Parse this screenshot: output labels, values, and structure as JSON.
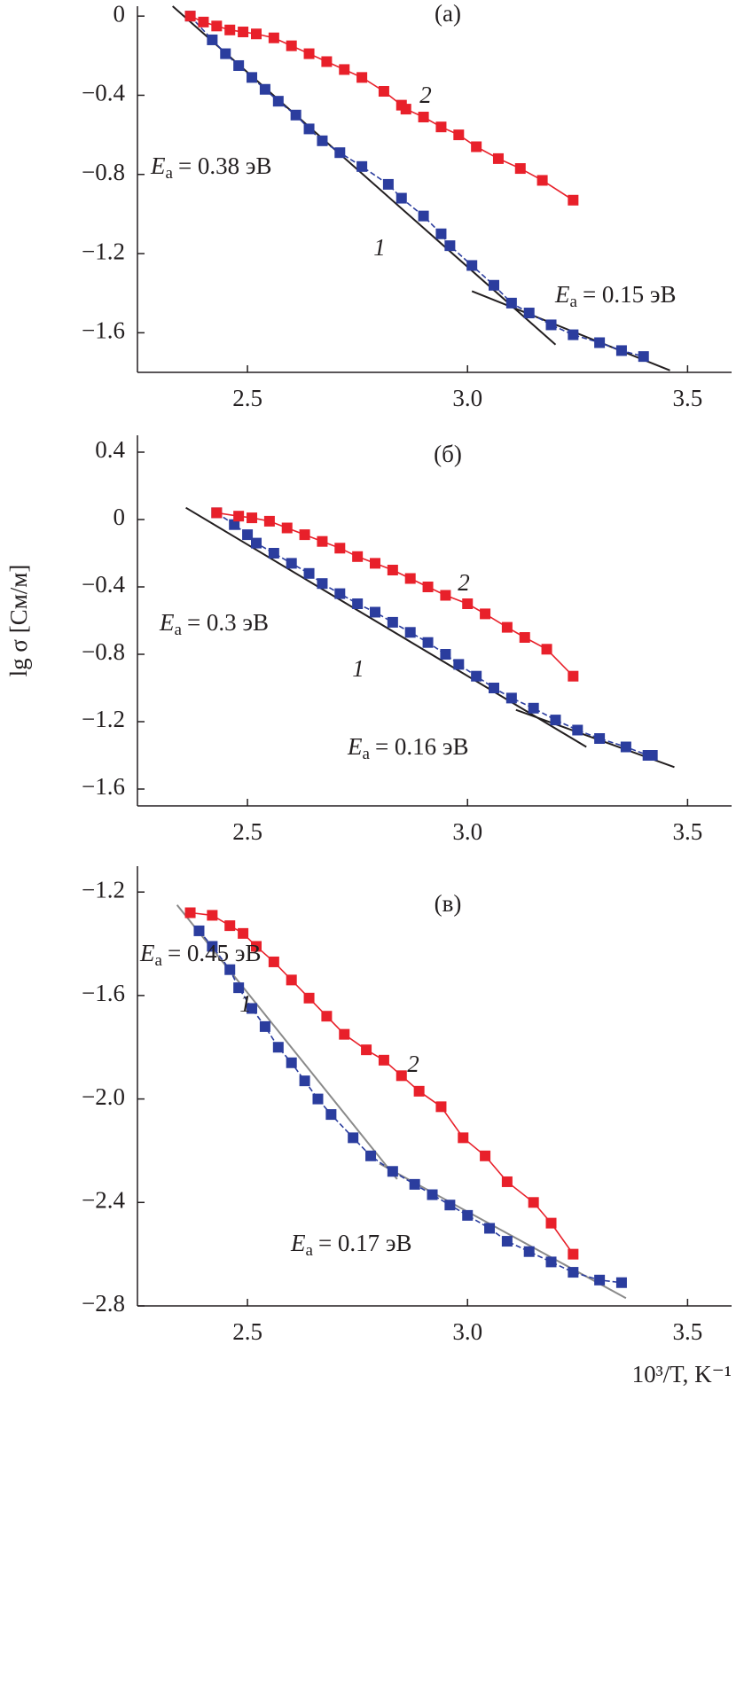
{
  "chart_data": [
    {
      "type": "scatter-line",
      "title": "(a)",
      "xlim": [
        2.25,
        3.6
      ],
      "xticks": [
        2.5,
        {
          "value": 3,
          "label": "3.0"
        },
        3.5
      ],
      "ylim": [
        -1.8,
        0.05
      ],
      "yticks": [
        0,
        {
          "value": -0.4,
          "label": "−0.4"
        },
        {
          "value": -0.8,
          "label": "−0.8"
        },
        {
          "value": -1.2,
          "label": "−1.2"
        },
        {
          "value": -1.6,
          "label": "−1.6"
        }
      ],
      "series": [
        {
          "name": "1",
          "color": "#2b3d9e",
          "x": [
            2.37,
            2.42,
            2.45,
            2.48,
            2.51,
            2.54,
            2.57,
            2.61,
            2.64,
            2.67,
            2.71,
            2.76,
            2.82,
            2.85,
            2.9,
            2.94,
            2.96,
            3.01,
            3.06,
            3.1,
            3.14,
            3.19,
            3.24,
            3.3,
            3.35,
            3.4
          ],
          "values": [
            0,
            -0.12,
            -0.19,
            -0.25,
            -0.31,
            -0.37,
            -0.43,
            -0.5,
            -0.57,
            -0.63,
            -0.69,
            -0.76,
            -0.85,
            -0.92,
            -1.01,
            -1.1,
            -1.16,
            -1.26,
            -1.36,
            -1.45,
            -1.5,
            -1.56,
            -1.61,
            -1.65,
            -1.69,
            -1.72
          ]
        },
        {
          "name": "2",
          "color": "#e8202a",
          "x": [
            2.37,
            2.4,
            2.43,
            2.46,
            2.49,
            2.52,
            2.56,
            2.6,
            2.64,
            2.68,
            2.72,
            2.76,
            2.81,
            2.85,
            2.86,
            2.9,
            2.94,
            2.98,
            3.02,
            3.07,
            3.12,
            3.17,
            3.24
          ],
          "values": [
            0,
            -0.03,
            -0.05,
            -0.07,
            -0.08,
            -0.09,
            -0.11,
            -0.15,
            -0.19,
            -0.23,
            -0.27,
            -0.31,
            -0.38,
            -0.45,
            -0.47,
            -0.51,
            -0.56,
            -0.6,
            -0.66,
            -0.72,
            -0.77,
            -0.83,
            -0.93
          ]
        }
      ],
      "fit_color": "#231f20",
      "fits": [
        {
          "x": [
            2.33,
            3.2
          ],
          "y": [
            0.05,
            -1.66
          ]
        },
        {
          "x": [
            3.01,
            3.46
          ],
          "y": [
            -1.39,
            -1.79
          ]
        }
      ],
      "annotations": [
        {
          "symbol": "E",
          "subscript": "a",
          "text": "= 0.38 эВ"
        },
        {
          "symbol": "E",
          "subscript": "a",
          "text": "= 0.15 эВ"
        }
      ]
    },
    {
      "type": "scatter-line",
      "title": "(б)",
      "y_label": "lg σ [См/м]",
      "xlim": [
        2.25,
        3.6
      ],
      "xticks": [
        2.5,
        {
          "value": 3,
          "label": "3.0"
        },
        3.5
      ],
      "ylim": [
        -1.7,
        0.5
      ],
      "yticks": [
        0.4,
        0,
        {
          "value": -0.4,
          "label": "−0.4"
        },
        {
          "value": -0.8,
          "label": "−0.8"
        },
        {
          "value": -1.2,
          "label": "−1.2"
        },
        {
          "value": -1.6,
          "label": "−1.6"
        }
      ],
      "series": [
        {
          "name": "1",
          "color": "#2b3d9e",
          "x": [
            2.43,
            2.47,
            2.5,
            2.52,
            2.56,
            2.6,
            2.64,
            2.67,
            2.71,
            2.75,
            2.79,
            2.83,
            2.87,
            2.91,
            2.95,
            2.98,
            3.02,
            3.06,
            3.1,
            3.15,
            3.2,
            3.25,
            3.3,
            3.36,
            3.41,
            3.42
          ],
          "values": [
            0.04,
            -0.03,
            -0.09,
            -0.14,
            -0.2,
            -0.26,
            -0.32,
            -0.38,
            -0.44,
            -0.5,
            -0.55,
            -0.61,
            -0.67,
            -0.73,
            -0.8,
            -0.86,
            -0.93,
            -1,
            -1.06,
            -1.12,
            -1.19,
            -1.25,
            -1.3,
            -1.35,
            -1.4,
            -1.4
          ]
        },
        {
          "name": "2",
          "color": "#e8202a",
          "x": [
            2.43,
            2.48,
            2.51,
            2.55,
            2.59,
            2.63,
            2.67,
            2.71,
            2.75,
            2.79,
            2.83,
            2.87,
            2.91,
            2.95,
            3,
            3.04,
            3.09,
            3.13,
            3.18,
            3.24
          ],
          "values": [
            0.04,
            0.02,
            0.01,
            -0.01,
            -0.05,
            -0.09,
            -0.13,
            -0.17,
            -0.22,
            -0.26,
            -0.3,
            -0.35,
            -0.4,
            -0.45,
            -0.5,
            -0.56,
            -0.64,
            -0.7,
            -0.77,
            -0.93
          ]
        }
      ],
      "fit_color": "#231f20",
      "fits": [
        {
          "x": [
            2.36,
            3.27
          ],
          "y": [
            0.07,
            -1.35
          ]
        },
        {
          "x": [
            3.11,
            3.47
          ],
          "y": [
            -1.13,
            -1.47
          ]
        }
      ],
      "annotations": [
        {
          "symbol": "E",
          "subscript": "a",
          "text": "= 0.3 эВ"
        },
        {
          "symbol": "E",
          "subscript": "a",
          "text": "= 0.16 эВ"
        }
      ]
    },
    {
      "type": "scatter-line",
      "title": "(в)",
      "x_label": "10³/T, K⁻¹",
      "xlim": [
        2.25,
        3.6
      ],
      "xticks": [
        2.5,
        {
          "value": 3,
          "label": "3.0"
        },
        3.5
      ],
      "ylim": [
        -2.8,
        -1.1
      ],
      "yticks": [
        {
          "value": -1.2,
          "label": "−1.2"
        },
        {
          "value": -1.6,
          "label": "−1.6"
        },
        {
          "value": -2,
          "label": "−2.0"
        },
        {
          "value": -2.4,
          "label": "−2.4"
        },
        {
          "value": -2.8,
          "label": "−2.8"
        }
      ],
      "series": [
        {
          "name": "1",
          "color": "#2b3d9e",
          "x": [
            2.39,
            2.42,
            2.46,
            2.48,
            2.51,
            2.54,
            2.57,
            2.6,
            2.63,
            2.66,
            2.69,
            2.74,
            2.78,
            2.83,
            2.88,
            2.92,
            2.96,
            3,
            3.05,
            3.09,
            3.14,
            3.19,
            3.24,
            3.3,
            3.35
          ],
          "values": [
            -1.35,
            -1.41,
            -1.5,
            -1.57,
            -1.65,
            -1.72,
            -1.8,
            -1.86,
            -1.93,
            -2,
            -2.06,
            -2.15,
            -2.22,
            -2.28,
            -2.33,
            -2.37,
            -2.41,
            -2.45,
            -2.5,
            -2.55,
            -2.59,
            -2.63,
            -2.67,
            -2.7,
            -2.71
          ]
        },
        {
          "name": "2",
          "color": "#e8202a",
          "x": [
            2.37,
            2.42,
            2.46,
            2.49,
            2.52,
            2.56,
            2.6,
            2.64,
            2.68,
            2.72,
            2.77,
            2.81,
            2.85,
            2.89,
            2.94,
            2.99,
            3.04,
            3.09,
            3.15,
            3.19,
            3.24
          ],
          "values": [
            -1.28,
            -1.29,
            -1.33,
            -1.36,
            -1.41,
            -1.47,
            -1.54,
            -1.61,
            -1.68,
            -1.75,
            -1.81,
            -1.85,
            -1.91,
            -1.97,
            -2.03,
            -2.15,
            -2.22,
            -2.32,
            -2.4,
            -2.48,
            -2.6
          ]
        }
      ],
      "fit_color": "#8a8a8a",
      "fits": [
        {
          "x": [
            2.34,
            2.84
          ],
          "y": [
            -1.25,
            -2.31
          ]
        },
        {
          "x": [
            2.8,
            3.36
          ],
          "y": [
            -2.25,
            -2.77
          ]
        }
      ],
      "annotations": [
        {
          "symbol": "E",
          "subscript": "a",
          "text": "= 0.45 эВ"
        },
        {
          "symbol": "E",
          "subscript": "a",
          "text": "= 0.17 эВ"
        }
      ]
    }
  ]
}
